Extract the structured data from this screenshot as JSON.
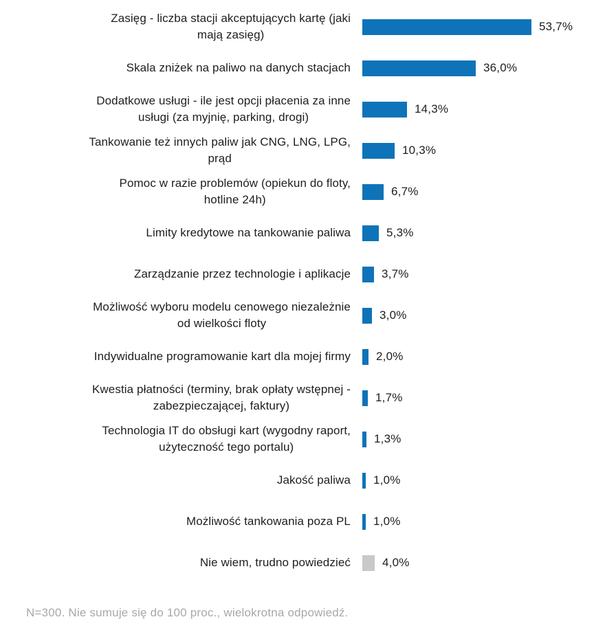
{
  "chart_data": {
    "type": "bar",
    "orientation": "horizontal",
    "title": "",
    "xlabel": "",
    "ylabel": "",
    "xlim": [
      0,
      60
    ],
    "grid": false,
    "legend": false,
    "bar_color": "#0e73b8",
    "muted_bar_color": "#c9c9c9",
    "categories": [
      "Zasięg - liczba stacji akceptujących kartę (jaki mają zasięg)",
      "Skala zniżek na paliwo na danych stacjach",
      "Dodatkowe usługi - ile jest opcji płacenia za inne usługi (za myjnię, parking, drogi)",
      "Tankowanie też innych paliw jak CNG, LNG, LPG, prąd",
      "Pomoc w razie problemów (opiekun do floty, hotline 24h)",
      "Limity kredytowe na tankowanie paliwa",
      "Zarządzanie przez technologie i aplikacje",
      "Możliwość wyboru modelu cenowego niezależnie od wielkości floty",
      "Indywidualne programowanie kart dla mojej firmy",
      "Kwestia płatności (terminy, brak opłaty wstępnej - zabezpieczającej, faktury)",
      "Technologia IT do obsługi kart (wygodny raport, użyteczność tego portalu)",
      "Jakość paliwa",
      "Możliwość tankowania poza PL",
      "Nie wiem, trudno powiedzieć"
    ],
    "values": [
      53.7,
      36.0,
      14.3,
      10.3,
      6.7,
      5.3,
      3.7,
      3.0,
      2.0,
      1.7,
      1.3,
      1.0,
      1.0,
      4.0
    ],
    "items": [
      {
        "label": "Zasięg - liczba stacji akceptujących kartę (jaki\nmają zasięg)",
        "value": 53.7,
        "value_label": "53,7%",
        "muted": false
      },
      {
        "label": "Skala zniżek na paliwo na danych stacjach",
        "value": 36.0,
        "value_label": "36,0%",
        "muted": false
      },
      {
        "label": "Dodatkowe usługi - ile jest opcji płacenia za inne\nusługi (za myjnię, parking, drogi)",
        "value": 14.3,
        "value_label": "14,3%",
        "muted": false
      },
      {
        "label": "Tankowanie też innych paliw jak CNG, LNG, LPG,\nprąd",
        "value": 10.3,
        "value_label": "10,3%",
        "muted": false
      },
      {
        "label": "Pomoc w razie problemów (opiekun do floty,\nhotline 24h)",
        "value": 6.7,
        "value_label": "6,7%",
        "muted": false
      },
      {
        "label": "Limity kredytowe na tankowanie paliwa",
        "value": 5.3,
        "value_label": "5,3%",
        "muted": false
      },
      {
        "label": "Zarządzanie przez technologie i aplikacje",
        "value": 3.7,
        "value_label": "3,7%",
        "muted": false
      },
      {
        "label": "Możliwość wyboru modelu cenowego niezależnie\nod wielkości floty",
        "value": 3.0,
        "value_label": "3,0%",
        "muted": false
      },
      {
        "label": "Indywidualne programowanie kart dla mojej firmy",
        "value": 2.0,
        "value_label": "2,0%",
        "muted": false
      },
      {
        "label": "Kwestia płatności (terminy, brak opłaty wstępnej -\nzabezpieczającej, faktury)",
        "value": 1.7,
        "value_label": "1,7%",
        "muted": false
      },
      {
        "label": "Technologia IT do obsługi kart (wygodny raport,\nużyteczność tego portalu)",
        "value": 1.3,
        "value_label": "1,3%",
        "muted": false
      },
      {
        "label": "Jakość paliwa",
        "value": 1.0,
        "value_label": "1,0%",
        "muted": false
      },
      {
        "label": "Możliwość tankowania poza PL",
        "value": 1.0,
        "value_label": "1,0%",
        "muted": false
      },
      {
        "label": "Nie wiem, trudno powiedzieć",
        "value": 4.0,
        "value_label": "4,0%",
        "muted": true
      }
    ],
    "footnote": "N=300. Nie sumuje się do 100 proc., wielokrotna odpowiedź."
  }
}
